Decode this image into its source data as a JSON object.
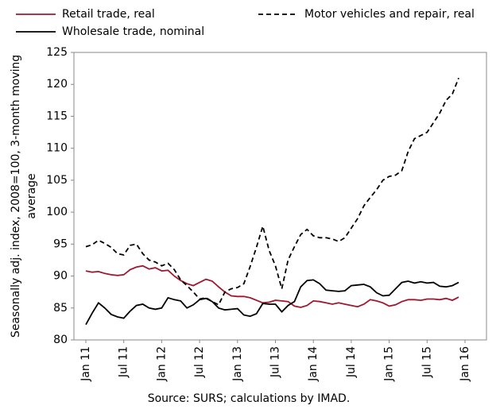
{
  "chart_data": {
    "type": "line",
    "y_label": [
      "Seasonally adj. index, 2008=100, 3-month moving",
      "average"
    ],
    "source": "Source: SURS; calculations by IMAD.",
    "categories": [
      "Jan 11",
      null,
      null,
      null,
      null,
      null,
      "Jul 11",
      null,
      null,
      null,
      null,
      null,
      "Jan 12",
      null,
      null,
      null,
      null,
      null,
      "Jul 12",
      null,
      null,
      null,
      null,
      null,
      "Jan 13",
      null,
      null,
      null,
      null,
      null,
      "Jul 13",
      null,
      null,
      null,
      null,
      null,
      "Jan 14",
      null,
      null,
      null,
      null,
      null,
      "Jul 14",
      null,
      null,
      null,
      null,
      null,
      "Jan 15",
      null,
      null,
      null,
      null,
      null,
      "Jul 15",
      null,
      null,
      null,
      null,
      null,
      "Jan 16"
    ],
    "series": [
      {
        "name": "Retail trade, real",
        "color": "#a0182e",
        "dash": false,
        "values": [
          90.8,
          90.6,
          90.7,
          90.4,
          90.2,
          90.1,
          90.2,
          91.0,
          91.4,
          91.6,
          91.1,
          91.3,
          90.8,
          90.9,
          90.0,
          89.3,
          88.8,
          88.5,
          89.0,
          89.5,
          89.2,
          88.3,
          87.5,
          86.9,
          86.8,
          86.8,
          86.6,
          86.2,
          85.8,
          85.9,
          86.2,
          86.1,
          86.0,
          85.3,
          85.1,
          85.4,
          86.1,
          86.0,
          85.8,
          85.6,
          85.8,
          85.6,
          85.4,
          85.2,
          85.6,
          86.3,
          86.1,
          85.8,
          85.3,
          85.5,
          86.0,
          86.3,
          86.3,
          86.2,
          86.4,
          86.4,
          86.3,
          86.5,
          86.2,
          86.7,
          null
        ]
      },
      {
        "name": "Wholesale trade, nominal",
        "color": "#000000",
        "dash": false,
        "values": [
          82.4,
          84.2,
          85.8,
          85.0,
          84.0,
          83.6,
          83.4,
          84.5,
          85.4,
          85.6,
          85.0,
          84.8,
          85.0,
          86.6,
          86.3,
          86.1,
          85.0,
          85.5,
          86.3,
          86.5,
          86.0,
          85.0,
          84.7,
          84.8,
          84.9,
          83.9,
          83.7,
          84.1,
          85.7,
          85.6,
          85.6,
          84.4,
          85.4,
          86.0,
          88.3,
          89.3,
          89.4,
          88.8,
          87.8,
          87.7,
          87.6,
          87.7,
          88.5,
          88.6,
          88.7,
          88.3,
          87.4,
          86.9,
          87.0,
          88.0,
          89.0,
          89.2,
          88.9,
          89.1,
          88.9,
          89.0,
          88.4,
          88.3,
          88.5,
          89.0,
          null
        ]
      },
      {
        "name": "Motor vehicles and repair, real",
        "color": "#000000",
        "dash": true,
        "values": [
          94.6,
          94.9,
          95.6,
          95.1,
          94.5,
          93.5,
          93.3,
          94.8,
          95.0,
          93.5,
          92.5,
          92.2,
          91.6,
          92.0,
          91.0,
          89.4,
          88.5,
          87.5,
          86.4,
          86.6,
          86.0,
          85.5,
          87.5,
          88.0,
          88.2,
          88.8,
          91.5,
          94.5,
          97.8,
          94.0,
          91.6,
          88.0,
          92.5,
          94.6,
          96.5,
          97.3,
          96.3,
          96.0,
          96.0,
          95.8,
          95.4,
          96.0,
          97.5,
          99.0,
          101.0,
          102.3,
          103.5,
          105.0,
          105.6,
          105.8,
          106.5,
          109.5,
          111.5,
          112.0,
          112.5,
          114.0,
          115.5,
          117.5,
          118.5,
          121.0,
          null
        ]
      }
    ],
    "ylim": [
      80,
      125
    ],
    "yticks": [
      80,
      85,
      90,
      95,
      100,
      105,
      110,
      115,
      120,
      125
    ],
    "grid": false
  }
}
